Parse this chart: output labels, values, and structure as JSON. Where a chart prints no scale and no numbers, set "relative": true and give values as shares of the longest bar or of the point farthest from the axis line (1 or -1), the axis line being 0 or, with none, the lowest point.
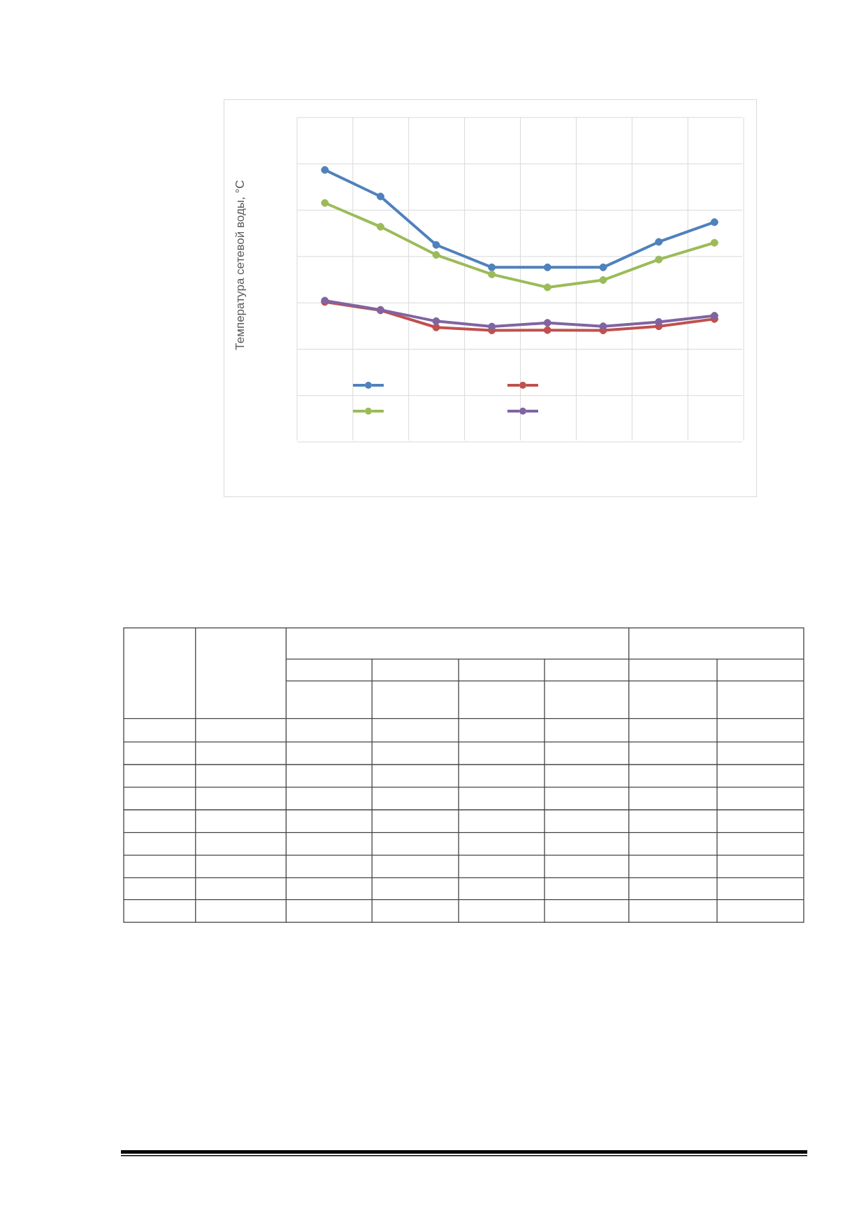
{
  "chart_data": {
    "type": "line",
    "ylabel": "Температура сетевой воды, °С",
    "relative": true,
    "categories": [
      null,
      null,
      null,
      null,
      null,
      null,
      null,
      null
    ],
    "series": [
      {
        "color": "#4f81bd",
        "values": [
          1,
          0.902,
          0.723,
          0.64,
          0.64,
          0.64,
          0.734,
          0.807
        ]
      },
      {
        "color": "#c0504d",
        "values": [
          0.512,
          0.481,
          0.418,
          0.407,
          0.408,
          0.407,
          0.422,
          0.449
        ]
      },
      {
        "color": "#9bbb59",
        "values": [
          0.878,
          0.79,
          0.686,
          0.614,
          0.566,
          0.593,
          0.669,
          0.731
        ]
      },
      {
        "color": "#8064a2",
        "values": [
          0.517,
          0.483,
          0.441,
          0.421,
          0.435,
          0.422,
          0.438,
          0.461
        ]
      }
    ],
    "grid": true,
    "marker": "circle",
    "line_style": "solid",
    "tick_labels": false
  }
}
